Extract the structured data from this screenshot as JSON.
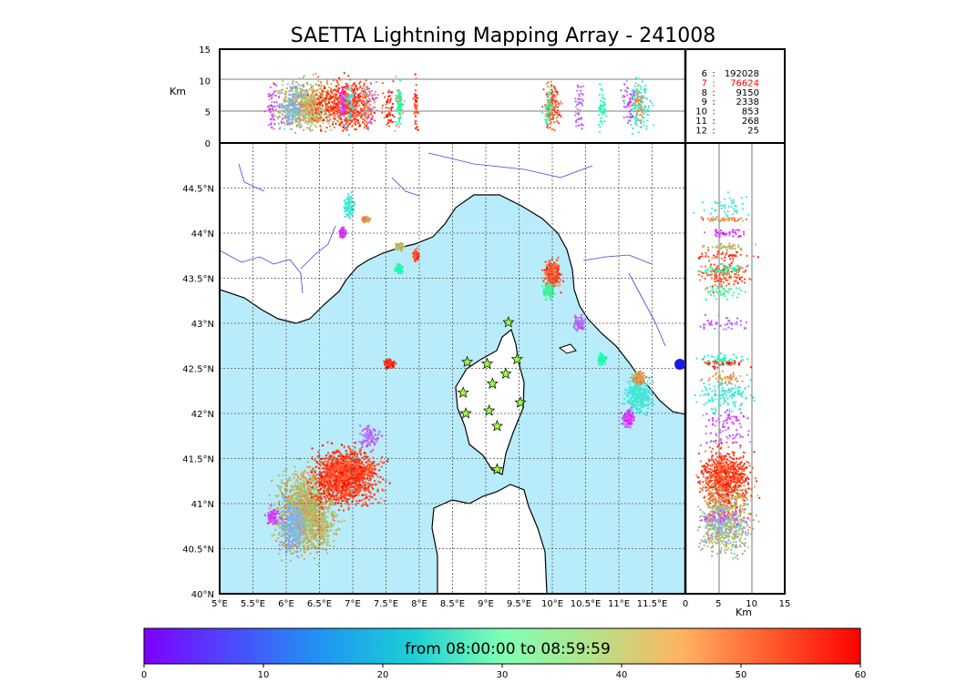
{
  "title": "SAETTA Lightning Mapping Array - 241008",
  "colorbar": {
    "caption": "from 08:00:00 to 08:59:59",
    "ticks": [
      0,
      10,
      20,
      30,
      40,
      50,
      60
    ],
    "tick_labels": [
      "0",
      "10",
      "20",
      "30",
      "40",
      "50",
      "60"
    ]
  },
  "stations_count_table": [
    {
      "stations": "6",
      "sep": ":",
      "count": "192028",
      "highlight": false
    },
    {
      "stations": "7",
      "sep": ":",
      "count": "76624",
      "highlight": true
    },
    {
      "stations": "8",
      "sep": ":",
      "count": "9150",
      "highlight": false
    },
    {
      "stations": "9",
      "sep": ":",
      "count": "2338",
      "highlight": false
    },
    {
      "stations": "10",
      "sep": ":",
      "count": "853",
      "highlight": false
    },
    {
      "stations": "11",
      "sep": ":",
      "count": "268",
      "highlight": false
    },
    {
      "stations": "12",
      "sep": ":",
      "count": "25",
      "highlight": false
    }
  ],
  "colors": {
    "sea": "#b9ecfb",
    "land": "#ffffff",
    "river": "#3f3fe6",
    "star": "#9bff3d",
    "highlight": "#ff0000"
  },
  "chart_data": [
    {
      "type": "scatter",
      "panel": "top (longitude-altitude)",
      "ylabel": "Km",
      "xlim": [
        5,
        12
      ],
      "ylim": [
        0,
        15
      ],
      "yticks": [
        0,
        5,
        10,
        15
      ],
      "grid": true
    },
    {
      "type": "scatter",
      "panel": "map (longitude-latitude)",
      "xlim": [
        5,
        12
      ],
      "ylim": [
        40,
        45
      ],
      "xticks": [
        5,
        5.5,
        6,
        6.5,
        7,
        7.5,
        8,
        8.5,
        9,
        9.5,
        10,
        10.5,
        11,
        11.5
      ],
      "xtick_labels": [
        "5°E",
        "5.5°E",
        "6°E",
        "6.5°E",
        "7°E",
        "7.5°E",
        "8°E",
        "8.5°E",
        "9°E",
        "9.5°E",
        "10°E",
        "10.5°E",
        "11°E",
        "11.5°E"
      ],
      "yticks": [
        40,
        40.5,
        41,
        41.5,
        42,
        42.5,
        43,
        43.5,
        44,
        44.5
      ],
      "ytick_labels": [
        "40°N",
        "40.5°N",
        "41°N",
        "41.5°N",
        "42°N",
        "42.5°N",
        "43°N",
        "43.5°N",
        "44°N",
        "44.5°N"
      ],
      "grid": true,
      "stations": [
        [
          8.72,
          42.57
        ],
        [
          9.02,
          42.55
        ],
        [
          9.47,
          42.6
        ],
        [
          9.34,
          43.01
        ],
        [
          8.66,
          42.23
        ],
        [
          9.1,
          42.33
        ],
        [
          9.3,
          42.44
        ],
        [
          8.7,
          42.0
        ],
        [
          9.05,
          42.03
        ],
        [
          9.52,
          42.12
        ],
        [
          9.17,
          41.86
        ],
        [
          9.17,
          41.38
        ]
      ],
      "source_clusters": [
        {
          "lon": 6.3,
          "lat": 40.9,
          "time": 45,
          "spread": [
            0.45,
            0.45
          ],
          "density": "high"
        },
        {
          "lon": 6.9,
          "lat": 41.3,
          "time": 55,
          "spread": [
            0.5,
            0.3
          ],
          "density": "high"
        },
        {
          "lon": 6.1,
          "lat": 40.75,
          "time": 15,
          "spread": [
            0.2,
            0.3
          ],
          "density": "medium"
        },
        {
          "lon": 5.8,
          "lat": 40.85,
          "time": 5,
          "spread": [
            0.1,
            0.1
          ],
          "density": "low"
        },
        {
          "lon": 7.25,
          "lat": 41.75,
          "time": 8,
          "spread": [
            0.15,
            0.15
          ],
          "density": "low"
        },
        {
          "lon": 7.55,
          "lat": 42.55,
          "time": 57,
          "spread": [
            0.08,
            0.05
          ],
          "density": "low"
        },
        {
          "lon": 10.0,
          "lat": 43.55,
          "time": 53,
          "spread": [
            0.12,
            0.15
          ],
          "density": "medium"
        },
        {
          "lon": 9.95,
          "lat": 43.35,
          "time": 35,
          "spread": [
            0.08,
            0.08
          ],
          "density": "low"
        },
        {
          "lon": 10.4,
          "lat": 43.0,
          "time": 8,
          "spread": [
            0.08,
            0.08
          ],
          "density": "low"
        },
        {
          "lon": 11.3,
          "lat": 42.2,
          "time": 22,
          "spread": [
            0.2,
            0.2
          ],
          "density": "medium"
        },
        {
          "lon": 11.15,
          "lat": 41.95,
          "time": 5,
          "spread": [
            0.1,
            0.1
          ],
          "density": "low"
        },
        {
          "lon": 11.3,
          "lat": 42.4,
          "time": 48,
          "spread": [
            0.1,
            0.08
          ],
          "density": "low"
        },
        {
          "lon": 10.75,
          "lat": 42.6,
          "time": 30,
          "spread": [
            0.06,
            0.05
          ],
          "density": "low"
        },
        {
          "lon": 6.95,
          "lat": 44.3,
          "time": 22,
          "spread": [
            0.08,
            0.15
          ],
          "density": "low"
        },
        {
          "lon": 6.85,
          "lat": 44.0,
          "time": 5,
          "spread": [
            0.05,
            0.05
          ],
          "density": "low"
        },
        {
          "lon": 7.2,
          "lat": 44.15,
          "time": 48,
          "spread": [
            0.06,
            0.03
          ],
          "density": "low"
        },
        {
          "lon": 7.95,
          "lat": 43.75,
          "time": 55,
          "spread": [
            0.04,
            0.06
          ],
          "density": "low"
        },
        {
          "lon": 7.7,
          "lat": 43.85,
          "time": 45,
          "spread": [
            0.06,
            0.04
          ],
          "density": "low"
        },
        {
          "lon": 7.7,
          "lat": 43.6,
          "time": 32,
          "spread": [
            0.05,
            0.05
          ],
          "density": "low"
        }
      ]
    },
    {
      "type": "scatter",
      "panel": "right (altitude-latitude)",
      "xlabel": "Km",
      "xlim": [
        0,
        15
      ],
      "ylim": [
        40,
        45
      ],
      "xticks": [
        0,
        5,
        10,
        15
      ],
      "grid": true
    }
  ]
}
